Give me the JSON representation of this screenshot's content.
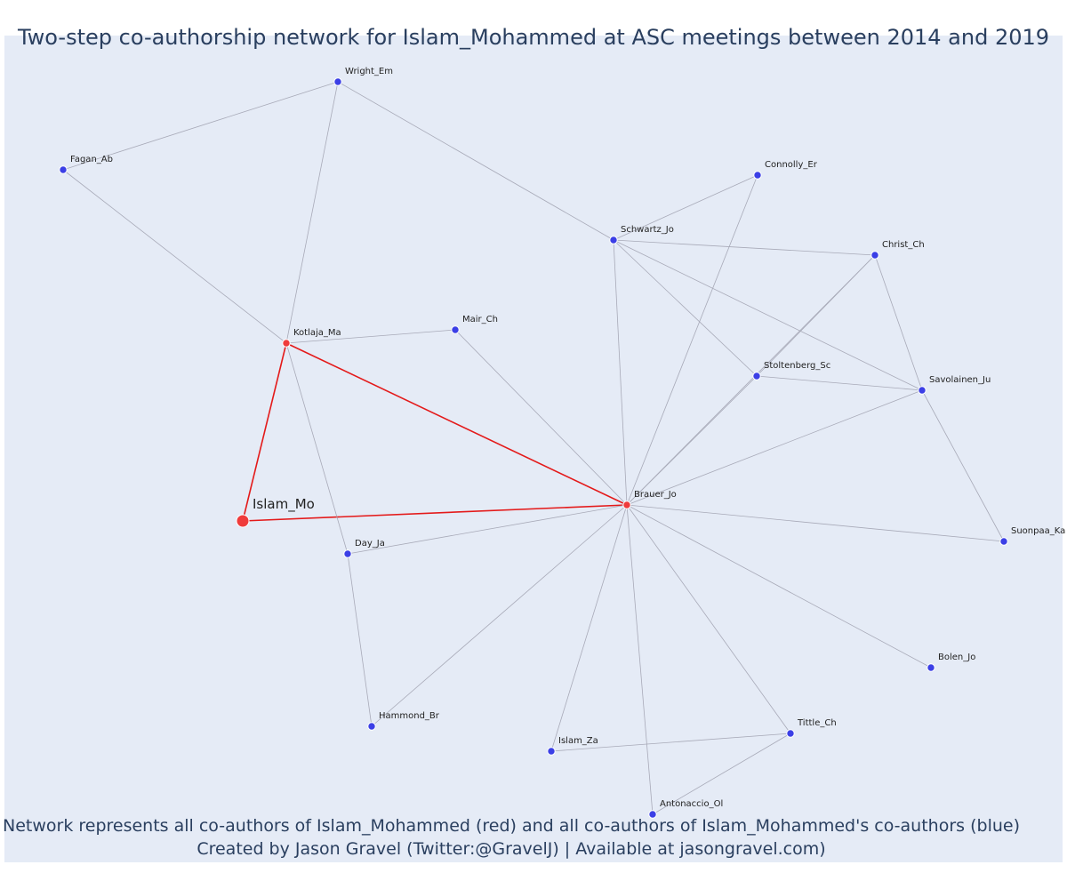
{
  "title": "Two-step co-authorship network for Islam_Mohammed at ASC meetings between 2014 and 2019",
  "footer": {
    "line1": "Network represents all co-authors of Islam_Mohammed (red) and all co-authors of Islam_Mohammed's co-authors (blue)",
    "line2": "Created by Jason Gravel (Twitter:@GravelJ) | Available at jasongravel.com)"
  },
  "colors": {
    "background": "#e5ebf6",
    "focal_node": "#ef3b3b",
    "direct_coauthor": "#ef3b3b",
    "second_step": "#3b3fe6",
    "direct_edge": "#e41a1a",
    "indirect_edge": "#a8aab8"
  },
  "nodes": [
    {
      "id": "Islam_Mo",
      "label": "Islam_Mo",
      "group": "focal"
    },
    {
      "id": "Kotlaja_Ma",
      "label": "Kotlaja_Ma",
      "group": "direct"
    },
    {
      "id": "Brauer_Jo",
      "label": "Brauer_Jo",
      "group": "direct"
    },
    {
      "id": "Wright_Em",
      "label": "Wright_Em",
      "group": "second"
    },
    {
      "id": "Fagan_Ab",
      "label": "Fagan_Ab",
      "group": "second"
    },
    {
      "id": "Connolly_Er",
      "label": "Connolly_Er",
      "group": "second"
    },
    {
      "id": "Schwartz_Jo",
      "label": "Schwartz_Jo",
      "group": "second"
    },
    {
      "id": "Christ_Ch",
      "label": "Christ_Ch",
      "group": "second"
    },
    {
      "id": "Mair_Ch",
      "label": "Mair_Ch",
      "group": "second"
    },
    {
      "id": "Stoltenberg_Sc",
      "label": "Stoltenberg_Sc",
      "group": "second"
    },
    {
      "id": "Savolainen_Ju",
      "label": "Savolainen_Ju",
      "group": "second"
    },
    {
      "id": "Day_Ja",
      "label": "Day_Ja",
      "group": "second"
    },
    {
      "id": "Suonpaa_Ka",
      "label": "Suonpaa_Ka",
      "group": "second"
    },
    {
      "id": "Bolen_Jo",
      "label": "Bolen_Jo",
      "group": "second"
    },
    {
      "id": "Hammond_Br",
      "label": "Hammond_Br",
      "group": "second"
    },
    {
      "id": "Tittle_Ch",
      "label": "Tittle_Ch",
      "group": "second"
    },
    {
      "id": "Islam_Za",
      "label": "Islam_Za",
      "group": "second"
    },
    {
      "id": "Antonaccio_Ol",
      "label": "Antonaccio_Ol",
      "group": "second"
    }
  ],
  "edges": [
    [
      "Islam_Mo",
      "Kotlaja_Ma",
      "direct"
    ],
    [
      "Islam_Mo",
      "Brauer_Jo",
      "direct"
    ],
    [
      "Kotlaja_Ma",
      "Brauer_Jo",
      "direct"
    ],
    [
      "Kotlaja_Ma",
      "Wright_Em",
      "indirect"
    ],
    [
      "Kotlaja_Ma",
      "Fagan_Ab",
      "indirect"
    ],
    [
      "Kotlaja_Ma",
      "Mair_Ch",
      "indirect"
    ],
    [
      "Kotlaja_Ma",
      "Day_Ja",
      "indirect"
    ],
    [
      "Fagan_Ab",
      "Wright_Em",
      "indirect"
    ],
    [
      "Wright_Em",
      "Schwartz_Jo",
      "indirect"
    ],
    [
      "Schwartz_Jo",
      "Connolly_Er",
      "indirect"
    ],
    [
      "Schwartz_Jo",
      "Christ_Ch",
      "indirect"
    ],
    [
      "Schwartz_Jo",
      "Stoltenberg_Sc",
      "indirect"
    ],
    [
      "Schwartz_Jo",
      "Savolainen_Ju",
      "indirect"
    ],
    [
      "Schwartz_Jo",
      "Brauer_Jo",
      "indirect"
    ],
    [
      "Christ_Ch",
      "Savolainen_Ju",
      "indirect"
    ],
    [
      "Christ_Ch",
      "Stoltenberg_Sc",
      "indirect"
    ],
    [
      "Christ_Ch",
      "Brauer_Jo",
      "indirect"
    ],
    [
      "Stoltenberg_Sc",
      "Savolainen_Ju",
      "indirect"
    ],
    [
      "Stoltenberg_Sc",
      "Brauer_Jo",
      "indirect"
    ],
    [
      "Savolainen_Ju",
      "Brauer_Jo",
      "indirect"
    ],
    [
      "Savolainen_Ju",
      "Suonpaa_Ka",
      "indirect"
    ],
    [
      "Connolly_Er",
      "Brauer_Jo",
      "indirect"
    ],
    [
      "Mair_Ch",
      "Brauer_Jo",
      "indirect"
    ],
    [
      "Brauer_Jo",
      "Day_Ja",
      "indirect"
    ],
    [
      "Brauer_Jo",
      "Suonpaa_Ka",
      "indirect"
    ],
    [
      "Brauer_Jo",
      "Bolen_Jo",
      "indirect"
    ],
    [
      "Brauer_Jo",
      "Hammond_Br",
      "indirect"
    ],
    [
      "Brauer_Jo",
      "Tittle_Ch",
      "indirect"
    ],
    [
      "Brauer_Jo",
      "Islam_Za",
      "indirect"
    ],
    [
      "Brauer_Jo",
      "Antonaccio_Ol",
      "indirect"
    ],
    [
      "Day_Ja",
      "Hammond_Br",
      "indirect"
    ],
    [
      "Tittle_Ch",
      "Islam_Za",
      "indirect"
    ],
    [
      "Tittle_Ch",
      "Antonaccio_Ol",
      "indirect"
    ]
  ]
}
